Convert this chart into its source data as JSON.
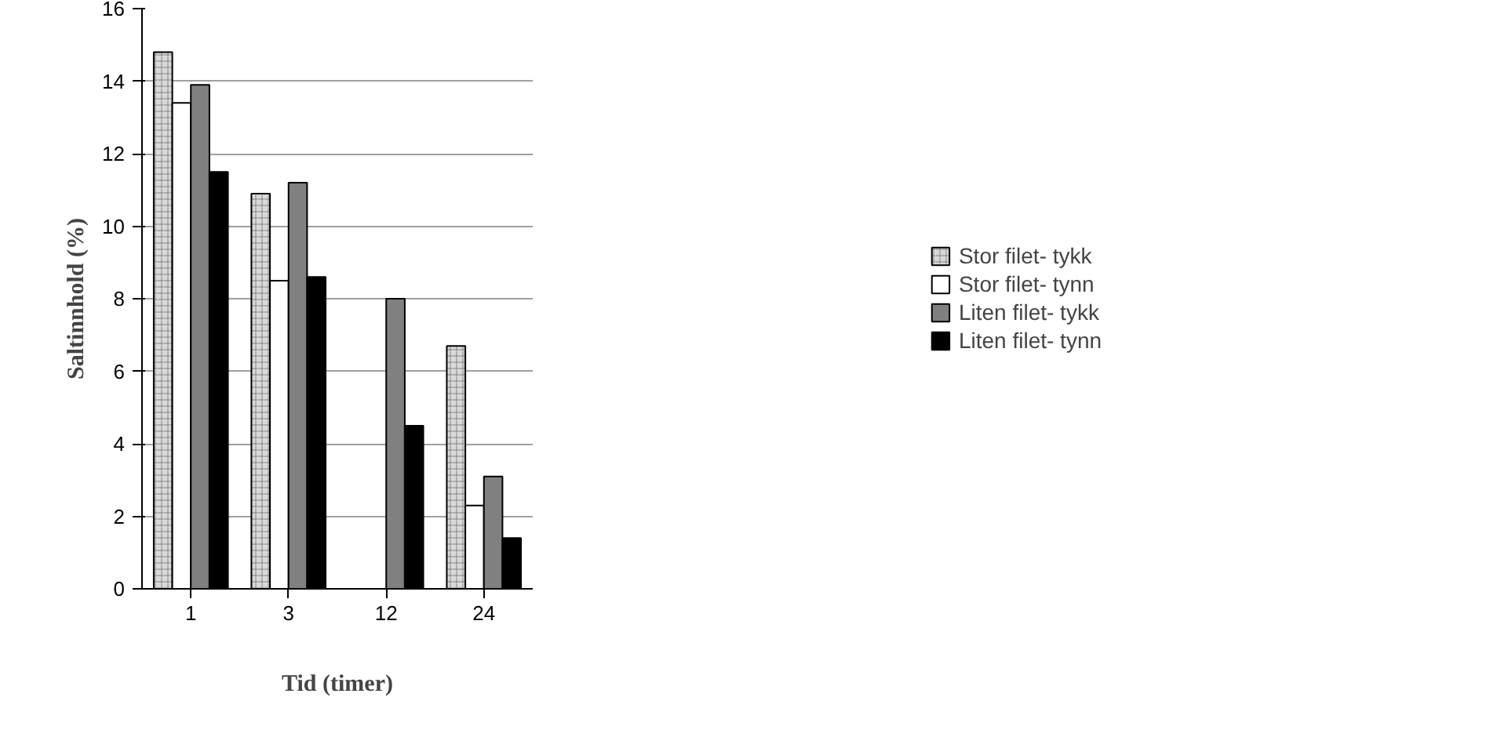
{
  "chart_data": {
    "type": "bar",
    "xlabel": "Tid (timer)",
    "ylabel": "Saltinnhold (%)",
    "categories": [
      "1",
      "3",
      "12",
      "24"
    ],
    "series": [
      {
        "name": "Stor filet- tykk",
        "color": "#d9d9d9",
        "values": [
          14.8,
          10.9,
          null,
          6.7
        ]
      },
      {
        "name": "Stor filet- tynn",
        "color": "#ffffff",
        "values": [
          13.4,
          8.5,
          null,
          2.3
        ]
      },
      {
        "name": "Liten filet- tykk",
        "color": "#808080",
        "values": [
          13.9,
          11.2,
          8.0,
          3.1
        ]
      },
      {
        "name": "Liten filet- tynn",
        "color": "#000000",
        "values": [
          11.5,
          8.6,
          4.5,
          1.4
        ]
      }
    ],
    "ylim": [
      0,
      16
    ],
    "yticks": [
      0,
      2,
      4,
      6,
      8,
      10,
      12,
      14,
      16
    ],
    "grid": "y",
    "legend": "right"
  }
}
